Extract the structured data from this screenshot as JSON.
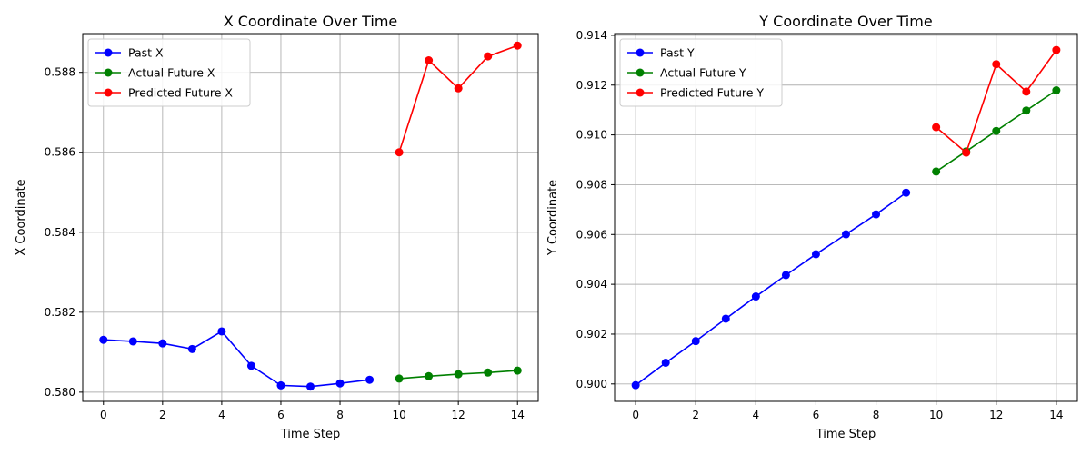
{
  "chart_data": [
    {
      "type": "line",
      "title": "X Coordinate Over Time",
      "xlabel": "Time Step",
      "ylabel": "X Coordinate",
      "xlim": [
        -0.7,
        14.7
      ],
      "ylim": [
        0.57977,
        0.58897
      ],
      "xticks": [
        0,
        2,
        4,
        6,
        8,
        10,
        12,
        14
      ],
      "xtick_labels": [
        "0",
        "2",
        "4",
        "6",
        "8",
        "10",
        "12",
        "14"
      ],
      "yticks": [
        0.58,
        0.582,
        0.584,
        0.586,
        0.588
      ],
      "ytick_labels": [
        "0.580",
        "0.582",
        "0.584",
        "0.586",
        "0.588"
      ],
      "grid": true,
      "legend_position": "top-left",
      "series": [
        {
          "name": "Past X",
          "color": "#0000ff",
          "x": [
            0,
            1,
            2,
            3,
            4,
            5,
            6,
            7,
            8,
            9
          ],
          "y": [
            0.58131,
            0.58127,
            0.58122,
            0.58108,
            0.58152,
            0.58066,
            0.58017,
            0.58014,
            0.58022,
            0.58031
          ]
        },
        {
          "name": "Actual Future X",
          "color": "#008000",
          "x": [
            10,
            11,
            12,
            13,
            14
          ],
          "y": [
            0.58034,
            0.5804,
            0.58045,
            0.58049,
            0.58054
          ]
        },
        {
          "name": "Predicted Future X",
          "color": "#ff0000",
          "x": [
            10,
            11,
            12,
            13,
            14
          ],
          "y": [
            0.586,
            0.5883,
            0.5876,
            0.5884,
            0.58867
          ]
        }
      ]
    },
    {
      "type": "line",
      "title": "Y Coordinate Over Time",
      "xlabel": "Time Step",
      "ylabel": "Y Coordinate",
      "xlim": [
        -0.7,
        14.7
      ],
      "ylim": [
        0.8993,
        0.91407
      ],
      "xticks": [
        0,
        2,
        4,
        6,
        8,
        10,
        12,
        14
      ],
      "xtick_labels": [
        "0",
        "2",
        "4",
        "6",
        "8",
        "10",
        "12",
        "14"
      ],
      "yticks": [
        0.9,
        0.902,
        0.904,
        0.906,
        0.908,
        0.91,
        0.912,
        0.914
      ],
      "ytick_labels": [
        "0.900",
        "0.902",
        "0.904",
        "0.906",
        "0.908",
        "0.910",
        "0.912",
        "0.914"
      ],
      "grid": true,
      "legend_position": "top-left",
      "series": [
        {
          "name": "Past Y",
          "color": "#0000ff",
          "x": [
            0,
            1,
            2,
            3,
            4,
            5,
            6,
            7,
            8,
            9
          ],
          "y": [
            0.89995,
            0.90085,
            0.90172,
            0.90262,
            0.90351,
            0.90437,
            0.90521,
            0.90601,
            0.90681,
            0.90768
          ]
        },
        {
          "name": "Actual Future Y",
          "color": "#008000",
          "x": [
            10,
            11,
            12,
            13,
            14
          ],
          "y": [
            0.90853,
            0.90934,
            0.91016,
            0.91098,
            0.91179
          ]
        },
        {
          "name": "Predicted Future Y",
          "color": "#ff0000",
          "x": [
            10,
            11,
            12,
            13,
            14
          ],
          "y": [
            0.91031,
            0.90929,
            0.91284,
            0.91174,
            0.91341
          ]
        }
      ]
    }
  ]
}
